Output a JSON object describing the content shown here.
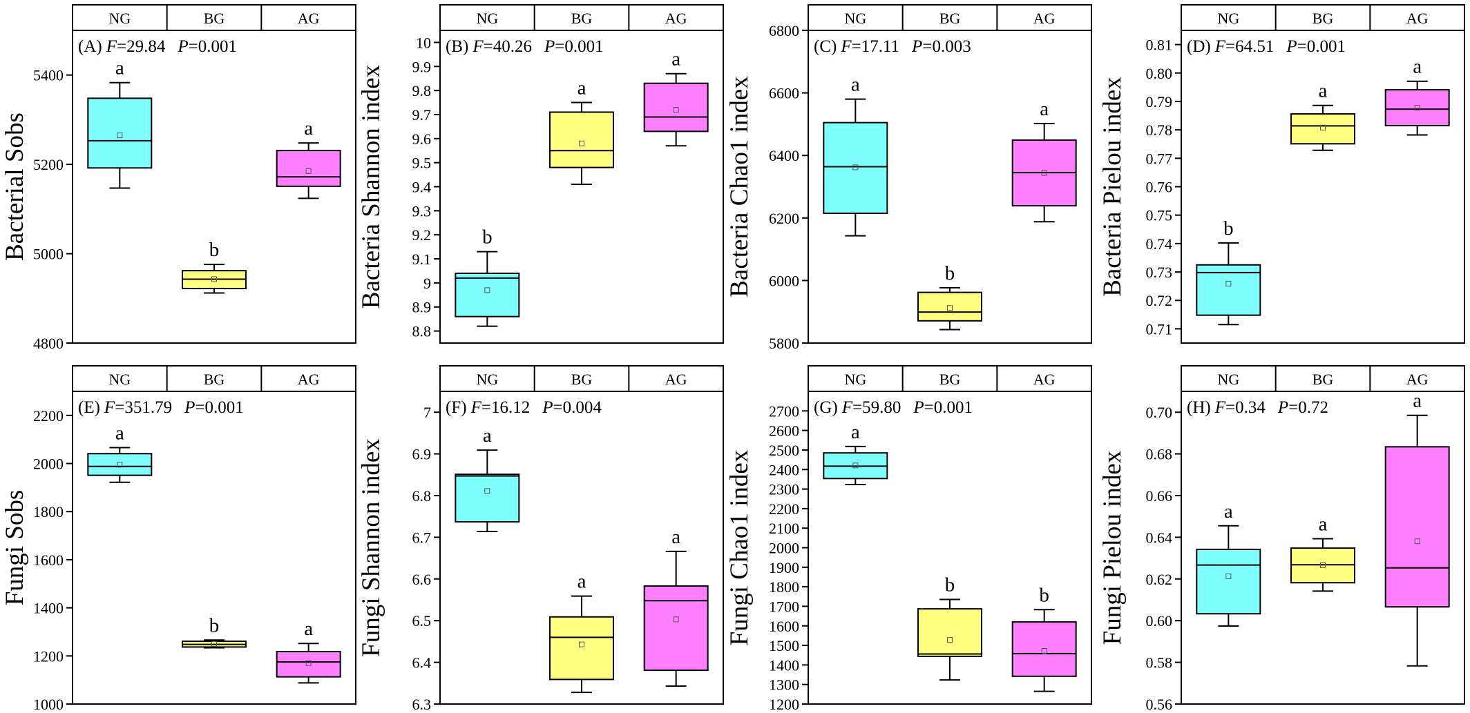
{
  "colors": {
    "NG": "#7efffe",
    "BG": "#ffff80",
    "AG": "#ff80ff",
    "frame": "#000000"
  },
  "chart_data": [
    {
      "type": "box",
      "panel": "(A)",
      "F": "29.84",
      "P": "0.001",
      "ylabel": "Bacterial Sobs",
      "groups": [
        "NG",
        "BG",
        "AG"
      ],
      "ylim": [
        4800,
        5500
      ],
      "yticks": [
        4800,
        5000,
        5200,
        5400
      ],
      "boxes": [
        {
          "group": "NG",
          "min": 5147,
          "q1": 5192,
          "median": 5253,
          "q3": 5348,
          "max": 5383,
          "mean": 5265,
          "letter": "a"
        },
        {
          "group": "BG",
          "min": 4912,
          "q1": 4922,
          "median": 4943,
          "q3": 4962,
          "max": 4976,
          "mean": 4943,
          "letter": "b"
        },
        {
          "group": "AG",
          "min": 5124,
          "q1": 5151,
          "median": 5172,
          "q3": 5231,
          "max": 5248,
          "mean": 5185,
          "letter": "a"
        }
      ]
    },
    {
      "type": "box",
      "panel": "(B)",
      "F": "40.26",
      "P": "0.001",
      "ylabel": "Bacteria Shannon index",
      "groups": [
        "NG",
        "BG",
        "AG"
      ],
      "ylim": [
        8.75,
        10.05
      ],
      "yticks": [
        8.8,
        8.9,
        9.0,
        9.1,
        9.2,
        9.3,
        9.4,
        9.5,
        9.6,
        9.7,
        9.8,
        9.9,
        10.0
      ],
      "boxes": [
        {
          "group": "NG",
          "min": 8.82,
          "q1": 8.86,
          "median": 9.02,
          "q3": 9.04,
          "max": 9.13,
          "mean": 8.97,
          "letter": "b"
        },
        {
          "group": "BG",
          "min": 9.41,
          "q1": 9.48,
          "median": 9.55,
          "q3": 9.71,
          "max": 9.75,
          "mean": 9.58,
          "letter": "a"
        },
        {
          "group": "AG",
          "min": 9.57,
          "q1": 9.63,
          "median": 9.69,
          "q3": 9.83,
          "max": 9.87,
          "mean": 9.72,
          "letter": "a"
        }
      ]
    },
    {
      "type": "box",
      "panel": "(C)",
      "F": "17.11",
      "P": "0.003",
      "ylabel": "Bacteria Chao1 index",
      "groups": [
        "NG",
        "BG",
        "AG"
      ],
      "ylim": [
        5800,
        6800
      ],
      "yticks": [
        5800,
        6000,
        6200,
        6400,
        6600,
        6800
      ],
      "boxes": [
        {
          "group": "NG",
          "min": 6143,
          "q1": 6215,
          "median": 6364,
          "q3": 6505,
          "max": 6580,
          "mean": 6362,
          "letter": "a"
        },
        {
          "group": "BG",
          "min": 5843,
          "q1": 5871,
          "median": 5899,
          "q3": 5962,
          "max": 5977,
          "mean": 5912,
          "letter": "b"
        },
        {
          "group": "AG",
          "min": 6188,
          "q1": 6239,
          "median": 6345,
          "q3": 6449,
          "max": 6502,
          "mean": 6344,
          "letter": "a"
        }
      ]
    },
    {
      "type": "box",
      "panel": "(D)",
      "F": "64.51",
      "P": "0.001",
      "ylabel": "Bacteria Pielou index",
      "groups": [
        "NG",
        "BG",
        "AG"
      ],
      "ylim": [
        0.705,
        0.815
      ],
      "yticks": [
        0.71,
        0.72,
        0.73,
        0.74,
        0.75,
        0.76,
        0.77,
        0.78,
        0.79,
        0.8,
        0.81
      ],
      "tickDecimals": 2,
      "boxes": [
        {
          "group": "NG",
          "min": 0.7115,
          "q1": 0.7148,
          "median": 0.7298,
          "q3": 0.7325,
          "max": 0.7402,
          "mean": 0.7259,
          "letter": "b"
        },
        {
          "group": "BG",
          "min": 0.7728,
          "q1": 0.7751,
          "median": 0.7814,
          "q3": 0.7856,
          "max": 0.7886,
          "mean": 0.7808,
          "letter": "a"
        },
        {
          "group": "AG",
          "min": 0.7782,
          "q1": 0.7815,
          "median": 0.7873,
          "q3": 0.7941,
          "max": 0.7971,
          "mean": 0.7878,
          "letter": "a"
        }
      ]
    },
    {
      "type": "box",
      "panel": "(E)",
      "F": "351.79",
      "P": "0.001",
      "ylabel": "Fungi Sobs",
      "groups": [
        "NG",
        "BG",
        "AG"
      ],
      "ylim": [
        1000,
        2300
      ],
      "yticks": [
        1000,
        1200,
        1400,
        1600,
        1800,
        2000,
        2200
      ],
      "boxes": [
        {
          "group": "NG",
          "min": 1922,
          "q1": 1951,
          "median": 1988,
          "q3": 2041,
          "max": 2066,
          "mean": 1995,
          "letter": "a"
        },
        {
          "group": "BG",
          "min": 1234,
          "q1": 1237,
          "median": 1248,
          "q3": 1261,
          "max": 1266,
          "mean": 1250,
          "letter": "b"
        },
        {
          "group": "AG",
          "min": 1088,
          "q1": 1113,
          "median": 1175,
          "q3": 1218,
          "max": 1252,
          "mean": 1170,
          "letter": "a"
        }
      ]
    },
    {
      "type": "box",
      "panel": "(F)",
      "F": "16.12",
      "P": "0.004",
      "ylabel": "Fungi Shannon index",
      "groups": [
        "NG",
        "BG",
        "AG"
      ],
      "ylim": [
        6.3,
        7.05
      ],
      "yticks": [
        6.3,
        6.4,
        6.5,
        6.6,
        6.7,
        6.8,
        6.9,
        7.0
      ],
      "boxes": [
        {
          "group": "NG",
          "min": 6.714,
          "q1": 6.737,
          "median": 6.847,
          "q3": 6.851,
          "max": 6.909,
          "mean": 6.811,
          "letter": "a"
        },
        {
          "group": "BG",
          "min": 6.328,
          "q1": 6.359,
          "median": 6.46,
          "q3": 6.509,
          "max": 6.559,
          "mean": 6.443,
          "letter": "a"
        },
        {
          "group": "AG",
          "min": 6.343,
          "q1": 6.381,
          "median": 6.548,
          "q3": 6.583,
          "max": 6.666,
          "mean": 6.503,
          "letter": "a"
        }
      ]
    },
    {
      "type": "box",
      "panel": "(G)",
      "F": "59.80",
      "P": "0.001",
      "ylabel": "Fungi Chao1 index",
      "groups": [
        "NG",
        "BG",
        "AG"
      ],
      "ylim": [
        1200,
        2800
      ],
      "yticks": [
        1200,
        1300,
        1400,
        1500,
        1600,
        1700,
        1800,
        1900,
        2000,
        2100,
        2200,
        2300,
        2400,
        2500,
        2600,
        2700
      ],
      "boxes": [
        {
          "group": "NG",
          "min": 2323,
          "q1": 2354,
          "median": 2417,
          "q3": 2485,
          "max": 2518,
          "mean": 2421,
          "letter": "a"
        },
        {
          "group": "BG",
          "min": 1323,
          "q1": 1444,
          "median": 1456,
          "q3": 1687,
          "max": 1735,
          "mean": 1528,
          "letter": "b"
        },
        {
          "group": "AG",
          "min": 1265,
          "q1": 1342,
          "median": 1458,
          "q3": 1620,
          "max": 1683,
          "mean": 1472,
          "letter": "b"
        }
      ]
    },
    {
      "type": "box",
      "panel": "(H)",
      "F": "0.34",
      "P": "0.72",
      "ylabel": "Fungi Pielou index",
      "groups": [
        "NG",
        "BG",
        "AG"
      ],
      "ylim": [
        0.56,
        0.71
      ],
      "yticks": [
        0.56,
        0.58,
        0.6,
        0.62,
        0.64,
        0.66,
        0.68,
        0.7
      ],
      "tickDecimals": 2,
      "boxes": [
        {
          "group": "NG",
          "min": 0.5974,
          "q1": 0.6033,
          "median": 0.6267,
          "q3": 0.6342,
          "max": 0.6455,
          "mean": 0.6213,
          "letter": "a"
        },
        {
          "group": "BG",
          "min": 0.6142,
          "q1": 0.6182,
          "median": 0.6268,
          "q3": 0.6348,
          "max": 0.6393,
          "mean": 0.6266,
          "letter": "a"
        },
        {
          "group": "AG",
          "min": 0.5783,
          "q1": 0.6066,
          "median": 0.6253,
          "q3": 0.6834,
          "max": 0.6985,
          "mean": 0.6381,
          "letter": "a"
        }
      ]
    }
  ]
}
